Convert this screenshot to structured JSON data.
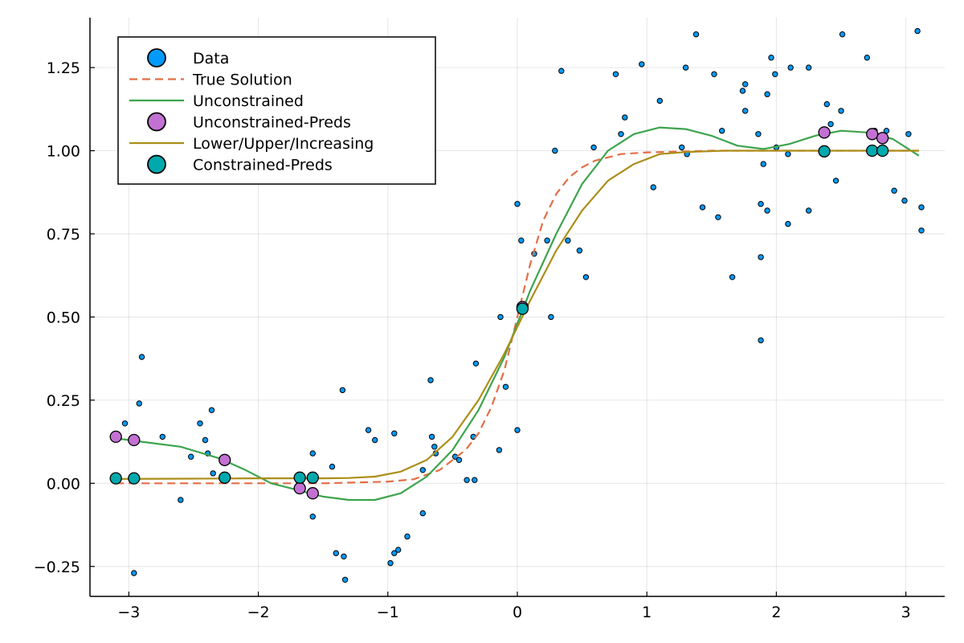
{
  "chart_data": {
    "type": "scatter",
    "title": "",
    "xlabel": "",
    "ylabel": "",
    "xlim": [
      -3.3,
      3.3
    ],
    "ylim": [
      -0.34,
      1.4
    ],
    "grid": true,
    "legend_position": "top-left",
    "x_ticks": [
      {
        "value": -3,
        "label": "−3"
      },
      {
        "value": -2,
        "label": "−2"
      },
      {
        "value": -1,
        "label": "−1"
      },
      {
        "value": 0,
        "label": "0"
      },
      {
        "value": 1,
        "label": "1"
      },
      {
        "value": 2,
        "label": "2"
      },
      {
        "value": 3,
        "label": "3"
      }
    ],
    "y_ticks": [
      {
        "value": -0.25,
        "label": "−0.25"
      },
      {
        "value": 0,
        "label": "0.00"
      },
      {
        "value": 0.25,
        "label": "0.25"
      },
      {
        "value": 0.5,
        "label": "0.50"
      },
      {
        "value": 0.75,
        "label": "0.75"
      },
      {
        "value": 1.0,
        "label": "1.00"
      },
      {
        "value": 1.25,
        "label": "1.25"
      }
    ],
    "series": [
      {
        "name": "Data",
        "kind": "scatter",
        "color": "#009AFA",
        "marker_size": "small",
        "points": [
          [
            -3.03,
            0.18
          ],
          [
            -2.9,
            0.38
          ],
          [
            -2.92,
            0.24
          ],
          [
            -2.96,
            -0.27
          ],
          [
            -2.74,
            0.14
          ],
          [
            -2.6,
            -0.05
          ],
          [
            -2.52,
            0.08
          ],
          [
            -2.45,
            0.18
          ],
          [
            -2.41,
            0.13
          ],
          [
            -2.39,
            0.09
          ],
          [
            -2.36,
            0.22
          ],
          [
            -2.35,
            0.03
          ],
          [
            -1.58,
            0.09
          ],
          [
            -1.58,
            -0.1
          ],
          [
            -1.43,
            0.05
          ],
          [
            -1.4,
            -0.21
          ],
          [
            -1.35,
            0.28
          ],
          [
            -1.34,
            -0.22
          ],
          [
            -1.33,
            -0.29
          ],
          [
            -1.15,
            0.16
          ],
          [
            -1.1,
            0.13
          ],
          [
            -0.98,
            -0.24
          ],
          [
            -0.95,
            -0.21
          ],
          [
            -0.95,
            0.15
          ],
          [
            -0.92,
            -0.2
          ],
          [
            -0.85,
            -0.16
          ],
          [
            -0.73,
            -0.09
          ],
          [
            -0.73,
            0.04
          ],
          [
            -0.67,
            0.31
          ],
          [
            -0.66,
            0.14
          ],
          [
            -0.64,
            0.11
          ],
          [
            -0.63,
            0.09
          ],
          [
            -0.48,
            0.08
          ],
          [
            -0.45,
            0.07
          ],
          [
            -0.39,
            0.01
          ],
          [
            -0.34,
            0.14
          ],
          [
            -0.33,
            0.01
          ],
          [
            -0.32,
            0.36
          ],
          [
            -0.14,
            0.1
          ],
          [
            -0.13,
            0.5
          ],
          [
            -0.09,
            0.29
          ],
          [
            0.0,
            0.16
          ],
          [
            0.0,
            0.84
          ],
          [
            0.03,
            0.73
          ],
          [
            0.04,
            0.53
          ],
          [
            0.13,
            0.69
          ],
          [
            0.23,
            0.73
          ],
          [
            0.26,
            0.5
          ],
          [
            0.29,
            1.0
          ],
          [
            0.34,
            1.24
          ],
          [
            0.39,
            0.73
          ],
          [
            0.48,
            0.7
          ],
          [
            0.53,
            0.62
          ],
          [
            0.59,
            1.01
          ],
          [
            0.76,
            1.23
          ],
          [
            0.8,
            1.05
          ],
          [
            0.83,
            1.1
          ],
          [
            0.96,
            1.26
          ],
          [
            1.05,
            0.89
          ],
          [
            1.1,
            1.15
          ],
          [
            1.27,
            1.01
          ],
          [
            1.3,
            1.25
          ],
          [
            1.31,
            0.99
          ],
          [
            1.38,
            1.35
          ],
          [
            1.43,
            0.83
          ],
          [
            1.52,
            1.23
          ],
          [
            1.55,
            0.8
          ],
          [
            1.58,
            1.06
          ],
          [
            1.66,
            0.62
          ],
          [
            1.74,
            1.18
          ],
          [
            1.76,
            1.2
          ],
          [
            1.76,
            1.12
          ],
          [
            1.86,
            1.05
          ],
          [
            1.88,
            0.68
          ],
          [
            1.88,
            0.84
          ],
          [
            1.88,
            0.43
          ],
          [
            1.9,
            0.96
          ],
          [
            1.93,
            0.82
          ],
          [
            1.93,
            1.17
          ],
          [
            1.96,
            1.28
          ],
          [
            1.99,
            1.23
          ],
          [
            2.0,
            1.01
          ],
          [
            2.09,
            0.99
          ],
          [
            2.09,
            0.78
          ],
          [
            2.11,
            1.25
          ],
          [
            2.25,
            1.25
          ],
          [
            2.25,
            0.82
          ],
          [
            2.39,
            1.14
          ],
          [
            2.42,
            1.08
          ],
          [
            2.46,
            0.91
          ],
          [
            2.5,
            1.12
          ],
          [
            2.51,
            1.35
          ],
          [
            2.7,
            1.28
          ],
          [
            2.76,
            1.06
          ],
          [
            2.85,
            1.06
          ],
          [
            2.91,
            0.88
          ],
          [
            2.99,
            0.85
          ],
          [
            3.02,
            1.05
          ],
          [
            3.09,
            1.36
          ],
          [
            3.12,
            0.83
          ],
          [
            3.12,
            0.76
          ]
        ]
      },
      {
        "name": "True Solution",
        "kind": "line",
        "color": "#E26F46",
        "dash": "dashed",
        "points": [
          [
            -3.1,
            0.0
          ],
          [
            -2.0,
            0.0
          ],
          [
            -1.5,
            0.0
          ],
          [
            -1.0,
            0.005
          ],
          [
            -0.8,
            0.012
          ],
          [
            -0.6,
            0.04
          ],
          [
            -0.4,
            0.1
          ],
          [
            -0.3,
            0.15
          ],
          [
            -0.2,
            0.23
          ],
          [
            -0.1,
            0.34
          ],
          [
            0.0,
            0.5
          ],
          [
            0.1,
            0.66
          ],
          [
            0.2,
            0.79
          ],
          [
            0.3,
            0.87
          ],
          [
            0.4,
            0.92
          ],
          [
            0.5,
            0.95
          ],
          [
            0.6,
            0.97
          ],
          [
            0.8,
            0.99
          ],
          [
            1.0,
            0.995
          ],
          [
            1.5,
            1.0
          ],
          [
            2.0,
            1.0
          ],
          [
            3.1,
            1.0
          ]
        ]
      },
      {
        "name": "Unconstrained",
        "kind": "line",
        "color": "#3DA44D",
        "points": [
          [
            -3.1,
            0.135
          ],
          [
            -2.9,
            0.125
          ],
          [
            -2.6,
            0.11
          ],
          [
            -2.3,
            0.075
          ],
          [
            -2.1,
            0.04
          ],
          [
            -1.9,
            0.0
          ],
          [
            -1.7,
            -0.02
          ],
          [
            -1.5,
            -0.04
          ],
          [
            -1.3,
            -0.05
          ],
          [
            -1.1,
            -0.05
          ],
          [
            -0.9,
            -0.03
          ],
          [
            -0.7,
            0.02
          ],
          [
            -0.5,
            0.1
          ],
          [
            -0.3,
            0.22
          ],
          [
            -0.1,
            0.38
          ],
          [
            0.0,
            0.48
          ],
          [
            0.1,
            0.58
          ],
          [
            0.3,
            0.75
          ],
          [
            0.5,
            0.9
          ],
          [
            0.7,
            1.0
          ],
          [
            0.9,
            1.05
          ],
          [
            1.1,
            1.07
          ],
          [
            1.3,
            1.065
          ],
          [
            1.5,
            1.045
          ],
          [
            1.7,
            1.015
          ],
          [
            1.9,
            1.005
          ],
          [
            2.1,
            1.02
          ],
          [
            2.3,
            1.045
          ],
          [
            2.5,
            1.06
          ],
          [
            2.7,
            1.055
          ],
          [
            2.9,
            1.035
          ],
          [
            3.1,
            0.985
          ]
        ]
      },
      {
        "name": "Unconstrained-Preds",
        "kind": "scatter",
        "color": "#C271D2",
        "marker_size": "large",
        "points": [
          [
            -3.1,
            0.14
          ],
          [
            -2.96,
            0.13
          ],
          [
            -2.26,
            0.07
          ],
          [
            -1.68,
            -0.015
          ],
          [
            -1.58,
            -0.03
          ],
          [
            0.04,
            0.53
          ],
          [
            2.37,
            1.055
          ],
          [
            2.74,
            1.05
          ],
          [
            2.82,
            1.038
          ]
        ]
      },
      {
        "name": "Lower/Upper/Increasing",
        "kind": "line",
        "color": "#AC8E18",
        "points": [
          [
            -3.1,
            0.013
          ],
          [
            -2.5,
            0.014
          ],
          [
            -2.0,
            0.015
          ],
          [
            -1.5,
            0.015
          ],
          [
            -1.3,
            0.016
          ],
          [
            -1.1,
            0.02
          ],
          [
            -0.9,
            0.035
          ],
          [
            -0.7,
            0.07
          ],
          [
            -0.5,
            0.14
          ],
          [
            -0.3,
            0.25
          ],
          [
            -0.1,
            0.39
          ],
          [
            0.0,
            0.47
          ],
          [
            0.1,
            0.55
          ],
          [
            0.3,
            0.7
          ],
          [
            0.5,
            0.82
          ],
          [
            0.7,
            0.91
          ],
          [
            0.9,
            0.96
          ],
          [
            1.1,
            0.99
          ],
          [
            1.3,
            0.996
          ],
          [
            1.6,
            1.0
          ],
          [
            2.0,
            1.0
          ],
          [
            2.5,
            1.0
          ],
          [
            3.1,
            1.0
          ]
        ]
      },
      {
        "name": "Constrained-Preds",
        "kind": "scatter",
        "color": "#00A9AD",
        "marker_size": "large",
        "points": [
          [
            -3.1,
            0.015
          ],
          [
            -2.96,
            0.015
          ],
          [
            -2.26,
            0.017
          ],
          [
            -1.68,
            0.017
          ],
          [
            -1.58,
            0.017
          ],
          [
            0.04,
            0.525
          ],
          [
            2.37,
            0.998
          ],
          [
            2.74,
            1.0
          ],
          [
            2.82,
            1.0
          ]
        ]
      }
    ]
  }
}
